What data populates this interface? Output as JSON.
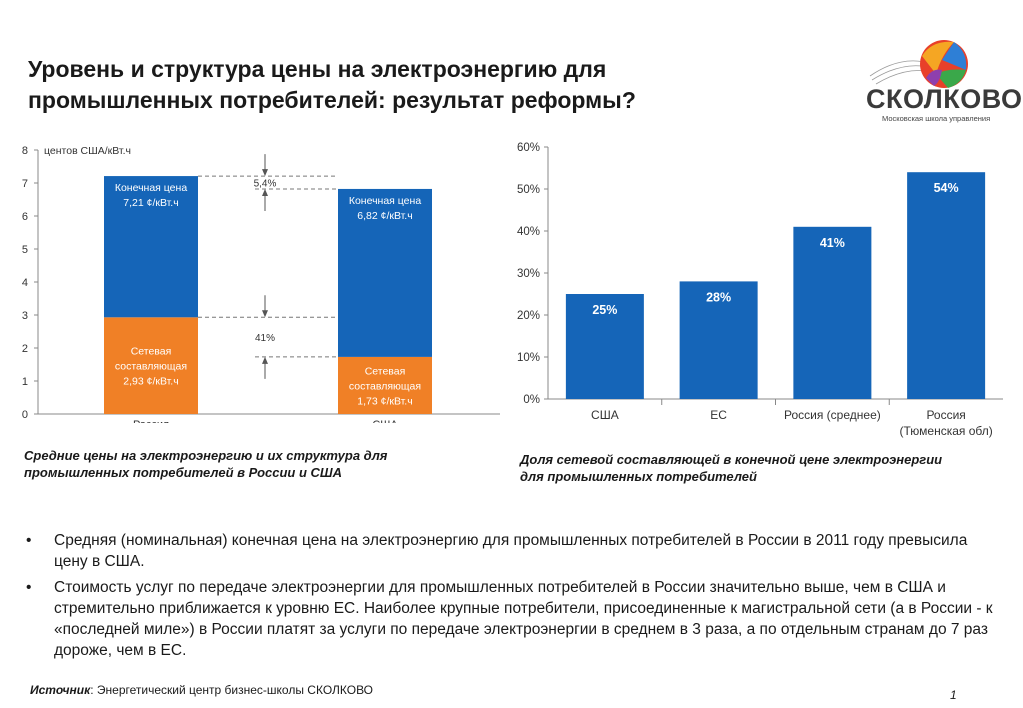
{
  "slide": {
    "title_line1": "Уровень и структура цены на электроэнергию для",
    "title_line2": "промышленных потребителей: результат реформы?",
    "logo_text": "СКОЛКОВО",
    "logo_subtitle": "Московская школа управления"
  },
  "colors": {
    "blue": "#1565b8",
    "orange": "#f08026",
    "axis": "#888888"
  },
  "chart_data": [
    {
      "type": "bar",
      "stacked": true,
      "ylabel": "центов США/кВт.ч",
      "ylim": [
        0,
        8
      ],
      "yticks": [
        "0",
        "1",
        "2",
        "3",
        "4",
        "5",
        "6",
        "7",
        "8"
      ],
      "categories": [
        "Россия",
        "США"
      ],
      "series": [
        {
          "name": "Сетевая составляющая",
          "values": [
            2.93,
            1.73
          ],
          "labels": [
            [
              "Сетевая",
              "составляющая",
              "2,93 ¢/кВт.ч"
            ],
            [
              "Сетевая",
              "составляющая",
              "1,73 ¢/кВт.ч"
            ]
          ]
        },
        {
          "name": "Конечная цена",
          "values": [
            4.28,
            5.09
          ],
          "labels": [
            [
              "Конечная цена",
              "7,21 ¢/кВт.ч"
            ],
            [
              "Конечная цена",
              "6,82 ¢/кВт.ч"
            ]
          ]
        }
      ],
      "annotations": [
        "5,4%",
        "41%"
      ],
      "caption": "Средние цены на электроэнергию и их структура для промышленных потребителей в России и США"
    },
    {
      "type": "bar",
      "ylim": [
        0,
        60
      ],
      "yticks": [
        "0%",
        "10%",
        "20%",
        "30%",
        "40%",
        "50%",
        "60%"
      ],
      "categories": [
        [
          "США"
        ],
        [
          "ЕС"
        ],
        [
          "Россия (среднее)"
        ],
        [
          "Россия",
          "(Тюменская обл)"
        ]
      ],
      "values": [
        25,
        28,
        41,
        54
      ],
      "data_labels": [
        "25%",
        "28%",
        "41%",
        "54%"
      ],
      "caption": "Доля сетевой составляющей в конечной цене электроэнергии для промышленных потребителей"
    }
  ],
  "bullets": [
    "Средняя (номинальная) конечная цена на электроэнергию для промышленных потребителей в России в 2011 году превысила цену в США.",
    "Стоимость услуг по передаче электроэнергии для промышленных потребителей в России значительно выше, чем в США и стремительно приближается к уровню ЕС. Наиболее крупные потребители, присоединенные к магистральной сети (а в России - к «последней миле») в России платят за услуги по передаче электроэнергии в среднем в 3 раза, а по отдельным странам до 7 раз дороже, чем в ЕС."
  ],
  "bullet_symbol": "•",
  "source": {
    "label": "Источник",
    "text": ": Энергетический центр бизнес-школы СКОЛКОВО"
  },
  "page_number": "1"
}
